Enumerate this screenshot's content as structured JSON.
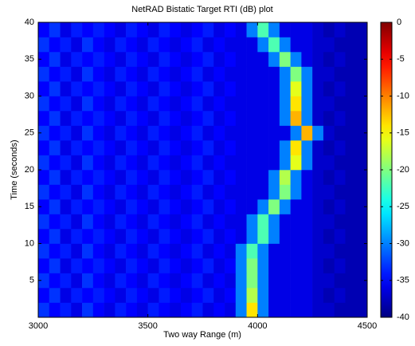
{
  "chart_data": {
    "type": "heatmap",
    "title": "NetRAD Bistatic Target RTI (dB) plot",
    "xlabel": "Two way Range (m)",
    "ylabel": "Time (seconds)",
    "colormap": "jet",
    "xlim": [
      3000,
      4500
    ],
    "xticks": [
      3000,
      3500,
      4000,
      4500
    ],
    "ylim": [
      0,
      40
    ],
    "yticks": [
      5,
      10,
      15,
      20,
      25,
      30,
      35,
      40
    ],
    "clim": [
      -40,
      0
    ],
    "cticks": [
      0,
      -5,
      -10,
      -15,
      -20,
      -25,
      -30,
      -35,
      -40
    ],
    "xbins": [
      3000,
      3050,
      3100,
      3150,
      3200,
      3250,
      3300,
      3350,
      3400,
      3450,
      3500,
      3550,
      3600,
      3650,
      3700,
      3750,
      3800,
      3850,
      3900,
      3950,
      4000,
      4050,
      4100,
      4150,
      4200,
      4250,
      4300,
      4350,
      4400,
      4450,
      4500
    ],
    "ybins": [
      0,
      2,
      4,
      6,
      8,
      10,
      12,
      14,
      16,
      18,
      20,
      22,
      24,
      26,
      28,
      30,
      32,
      34,
      36,
      38,
      40
    ],
    "z": [
      [
        -33,
        -35,
        -34,
        -36,
        -33,
        -35,
        -36,
        -34,
        -35,
        -36,
        -34,
        -35,
        -36,
        -35,
        -34,
        -36,
        -35,
        -36,
        -30,
        -14,
        -30,
        -36,
        -36,
        -36,
        -36,
        -37,
        -37,
        -38,
        -38,
        -38
      ],
      [
        -35,
        -33,
        -36,
        -34,
        -35,
        -34,
        -35,
        -36,
        -34,
        -35,
        -36,
        -34,
        -35,
        -36,
        -35,
        -34,
        -36,
        -35,
        -30,
        -18,
        -30,
        -36,
        -36,
        -36,
        -36,
        -37,
        -38,
        -37,
        -38,
        -38
      ],
      [
        -33,
        -35,
        -34,
        -36,
        -33,
        -35,
        -36,
        -34,
        -35,
        -36,
        -34,
        -35,
        -36,
        -35,
        -34,
        -36,
        -35,
        -36,
        -30,
        -20,
        -30,
        -36,
        -36,
        -36,
        -36,
        -37,
        -37,
        -38,
        -38,
        -38
      ],
      [
        -35,
        -33,
        -36,
        -34,
        -35,
        -34,
        -35,
        -36,
        -34,
        -35,
        -36,
        -34,
        -35,
        -36,
        -35,
        -34,
        -36,
        -35,
        -30,
        -20,
        -30,
        -36,
        -36,
        -36,
        -36,
        -37,
        -38,
        -37,
        -38,
        -38
      ],
      [
        -33,
        -35,
        -34,
        -36,
        -33,
        -35,
        -36,
        -34,
        -35,
        -36,
        -34,
        -35,
        -36,
        -35,
        -34,
        -36,
        -35,
        -36,
        -30,
        -22,
        -30,
        -36,
        -36,
        -36,
        -36,
        -37,
        -37,
        -38,
        -38,
        -38
      ],
      [
        -35,
        -33,
        -36,
        -34,
        -35,
        -34,
        -35,
        -36,
        -34,
        -35,
        -36,
        -34,
        -35,
        -36,
        -35,
        -34,
        -36,
        -35,
        -36,
        -30,
        -22,
        -30,
        -36,
        -36,
        -36,
        -37,
        -38,
        -37,
        -38,
        -38
      ],
      [
        -33,
        -35,
        -34,
        -36,
        -33,
        -35,
        -36,
        -34,
        -35,
        -36,
        -34,
        -35,
        -36,
        -35,
        -34,
        -36,
        -35,
        -36,
        -36,
        -30,
        -22,
        -30,
        -36,
        -36,
        -36,
        -37,
        -37,
        -38,
        -38,
        -38
      ],
      [
        -35,
        -33,
        -36,
        -34,
        -35,
        -34,
        -35,
        -36,
        -34,
        -35,
        -36,
        -34,
        -35,
        -36,
        -35,
        -34,
        -36,
        -35,
        -36,
        -36,
        -30,
        -20,
        -30,
        -36,
        -36,
        -37,
        -38,
        -37,
        -38,
        -38
      ],
      [
        -33,
        -35,
        -34,
        -36,
        -33,
        -35,
        -36,
        -34,
        -35,
        -36,
        -34,
        -35,
        -36,
        -35,
        -34,
        -36,
        -35,
        -36,
        -36,
        -36,
        -36,
        -30,
        -20,
        -30,
        -36,
        -37,
        -37,
        -38,
        -38,
        -38
      ],
      [
        -35,
        -33,
        -36,
        -34,
        -35,
        -34,
        -35,
        -36,
        -34,
        -35,
        -36,
        -34,
        -35,
        -36,
        -35,
        -34,
        -36,
        -35,
        -36,
        -36,
        -36,
        -30,
        -18,
        -30,
        -36,
        -37,
        -38,
        -37,
        -38,
        -38
      ],
      [
        -33,
        -35,
        -34,
        -36,
        -33,
        -35,
        -36,
        -34,
        -35,
        -36,
        -34,
        -35,
        -36,
        -35,
        -34,
        -36,
        -35,
        -36,
        -36,
        -36,
        -36,
        -36,
        -30,
        -16,
        -30,
        -37,
        -37,
        -38,
        -38,
        -38
      ],
      [
        -35,
        -33,
        -36,
        -34,
        -35,
        -34,
        -35,
        -36,
        -34,
        -35,
        -36,
        -34,
        -35,
        -36,
        -35,
        -34,
        -36,
        -35,
        -36,
        -36,
        -36,
        -36,
        -30,
        -14,
        -30,
        -37,
        -38,
        -37,
        -38,
        -38
      ],
      [
        -33,
        -35,
        -34,
        -36,
        -33,
        -35,
        -36,
        -34,
        -35,
        -36,
        -34,
        -35,
        -36,
        -35,
        -34,
        -36,
        -35,
        -36,
        -36,
        -36,
        -36,
        -36,
        -36,
        -30,
        -12,
        -30,
        -37,
        -38,
        -38,
        -38
      ],
      [
        -35,
        -33,
        -36,
        -34,
        -35,
        -34,
        -35,
        -36,
        -34,
        -35,
        -36,
        -34,
        -35,
        -36,
        -35,
        -34,
        -36,
        -35,
        -36,
        -36,
        -36,
        -36,
        -30,
        -12,
        -30,
        -37,
        -38,
        -37,
        -38,
        -38
      ],
      [
        -33,
        -35,
        -34,
        -36,
        -33,
        -35,
        -36,
        -34,
        -35,
        -36,
        -34,
        -35,
        -36,
        -35,
        -34,
        -36,
        -35,
        -36,
        -36,
        -36,
        -36,
        -36,
        -30,
        -14,
        -30,
        -37,
        -37,
        -38,
        -38,
        -38
      ],
      [
        -35,
        -33,
        -36,
        -34,
        -35,
        -34,
        -35,
        -36,
        -34,
        -35,
        -36,
        -34,
        -35,
        -36,
        -35,
        -34,
        -36,
        -35,
        -36,
        -36,
        -36,
        -36,
        -30,
        -16,
        -30,
        -37,
        -38,
        -37,
        -38,
        -38
      ],
      [
        -33,
        -35,
        -34,
        -36,
        -33,
        -35,
        -36,
        -34,
        -35,
        -36,
        -34,
        -35,
        -36,
        -35,
        -34,
        -36,
        -35,
        -36,
        -36,
        -36,
        -36,
        -36,
        -30,
        -20,
        -30,
        -37,
        -37,
        -38,
        -38,
        -38
      ],
      [
        -35,
        -33,
        -36,
        -34,
        -35,
        -34,
        -35,
        -36,
        -34,
        -35,
        -36,
        -34,
        -35,
        -36,
        -35,
        -34,
        -36,
        -35,
        -36,
        -36,
        -36,
        -30,
        -20,
        -30,
        -36,
        -37,
        -38,
        -37,
        -38,
        -38
      ],
      [
        -33,
        -35,
        -34,
        -36,
        -33,
        -35,
        -36,
        -34,
        -35,
        -36,
        -34,
        -35,
        -36,
        -35,
        -34,
        -36,
        -35,
        -36,
        -36,
        -36,
        -30,
        -22,
        -30,
        -36,
        -36,
        -37,
        -37,
        -38,
        -38,
        -38
      ],
      [
        -35,
        -33,
        -36,
        -34,
        -35,
        -34,
        -35,
        -36,
        -34,
        -35,
        -36,
        -34,
        -35,
        -36,
        -35,
        -34,
        -36,
        -35,
        -36,
        -30,
        -22,
        -30,
        -36,
        -36,
        -36,
        -37,
        -38,
        -37,
        -38,
        -38
      ]
    ]
  }
}
